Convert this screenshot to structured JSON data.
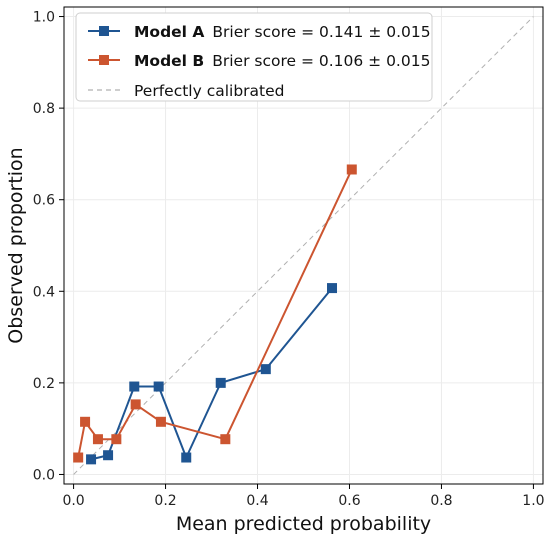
{
  "chart_data": {
    "type": "line",
    "title": "",
    "xlabel": "Mean predicted probability",
    "ylabel": "Observed proportion",
    "xlim": [
      0.0,
      1.0
    ],
    "ylim": [
      0.0,
      1.0
    ],
    "xticks": [
      "0.0",
      "0.2",
      "0.4",
      "0.6",
      "0.8",
      "1.0"
    ],
    "yticks": [
      "0.0",
      "0.2",
      "0.4",
      "0.6",
      "0.8",
      "1.0"
    ],
    "grid": true,
    "legend_position": "top-left",
    "series": [
      {
        "name": "Model A",
        "legend_detail": "Brier score = 0.141 ± 0.015",
        "color": "#1f5592",
        "marker": "square",
        "x": [
          0.038,
          0.075,
          0.132,
          0.185,
          0.245,
          0.32,
          0.418,
          0.562
        ],
        "y": [
          0.033,
          0.042,
          0.192,
          0.192,
          0.037,
          0.2,
          0.23,
          0.407
        ]
      },
      {
        "name": "Model B",
        "legend_detail": "Brier score = 0.106 ± 0.015",
        "color": "#cc5530",
        "marker": "square",
        "x": [
          0.01,
          0.025,
          0.053,
          0.093,
          0.135,
          0.19,
          0.33,
          0.605
        ],
        "y": [
          0.037,
          0.115,
          0.077,
          0.077,
          0.153,
          0.115,
          0.077,
          0.666
        ]
      }
    ],
    "reference_line": {
      "name": "Perfectly calibrated",
      "color": "#b0b0b0",
      "style": "dashed",
      "x": [
        0.0,
        1.0
      ],
      "y": [
        0.0,
        1.0
      ]
    }
  }
}
